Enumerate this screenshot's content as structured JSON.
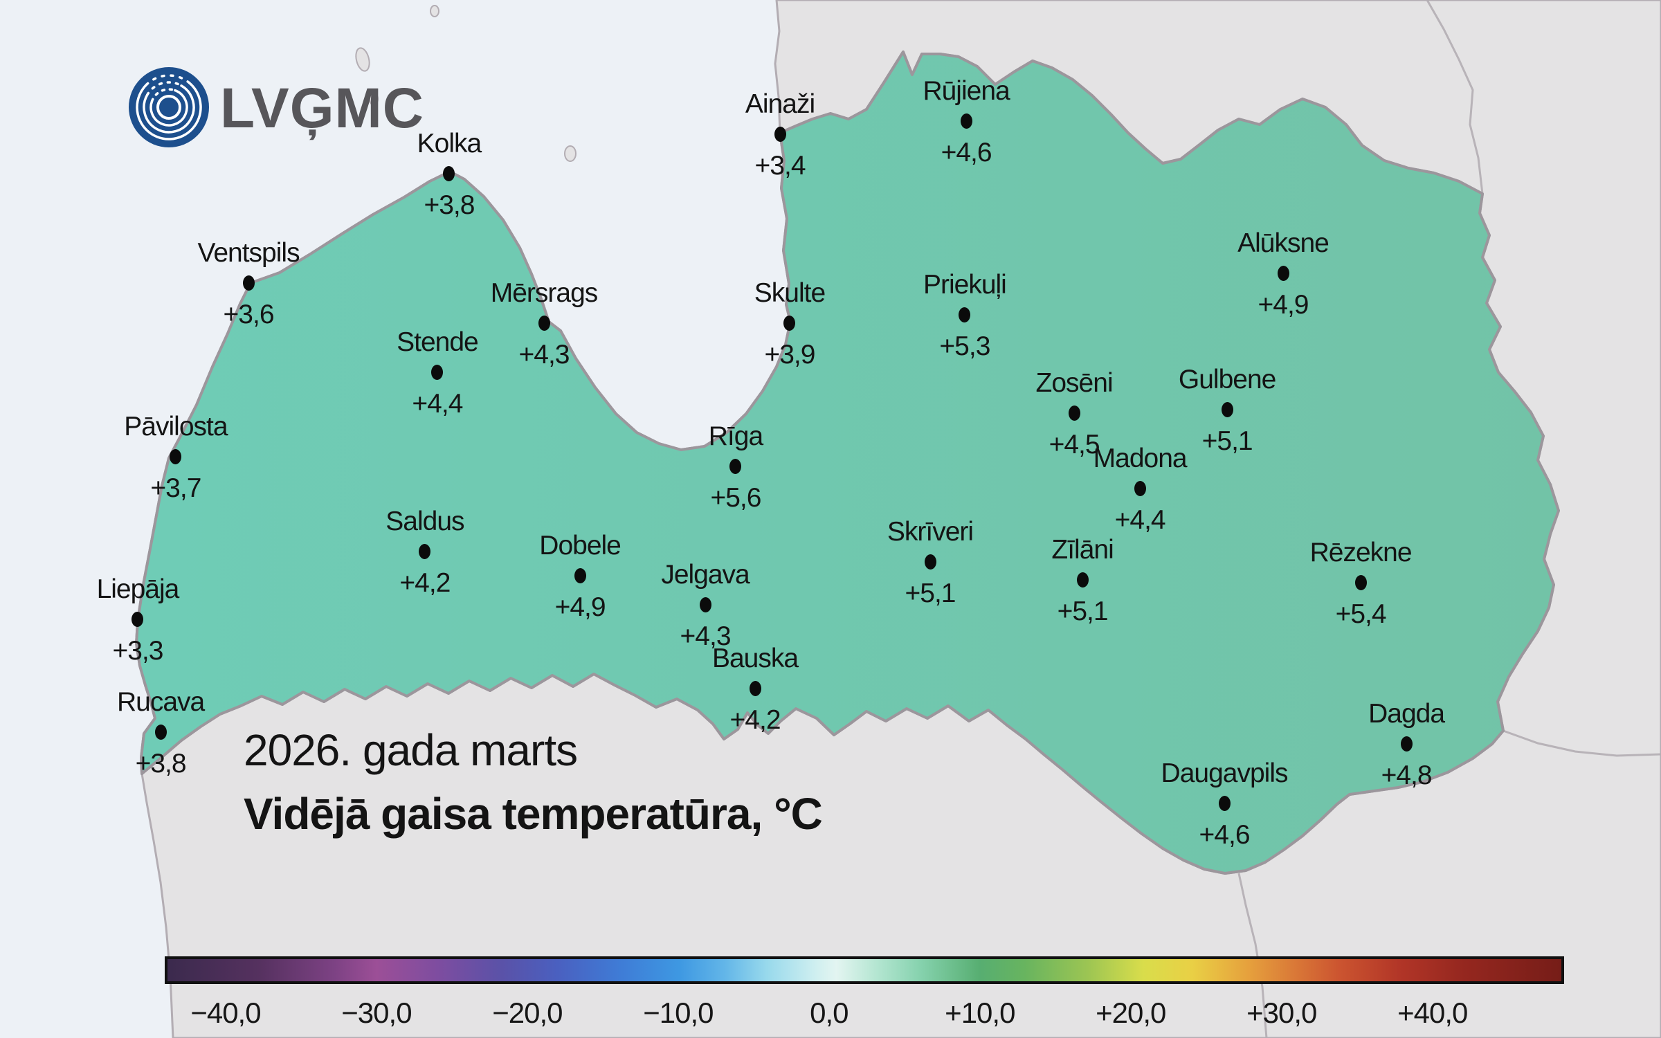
{
  "logo": {
    "text": "LVĢMC"
  },
  "title": {
    "line1": "2026. gada marts",
    "line2": "Vidējā gaisa temperatūra, °C"
  },
  "colors": {
    "sea": "#edf1f6",
    "foreign_land": "#e4e3e4",
    "foreign_border": "#b3adb3",
    "latvia_fill_west": "#6fccb6",
    "latvia_fill_east": "#72c3a7",
    "latvia_border": "#9c969c",
    "inner_border": "#b9aeb6",
    "station_dot": "#0b0b0b",
    "label_text": "#141414",
    "logo_blue": "#1d4f8d",
    "logo_text": "#57565a",
    "colorbar_border": "#111111"
  },
  "chart_data": {
    "type": "map",
    "title": "2026. gada marts",
    "subtitle": "Vidējā gaisa temperatūra, °C",
    "unit": "°C",
    "legend_position": "bottom",
    "stations": [
      {
        "name": "Kolka",
        "value": "+3,8",
        "value_c": 3.8,
        "x_pct": 27.04,
        "y_pct": 16.73
      },
      {
        "name": "Ainaži",
        "value": "+3,4",
        "value_c": 3.4,
        "x_pct": 46.96,
        "y_pct": 12.93
      },
      {
        "name": "Rūjiena",
        "value": "+4,6",
        "value_c": 4.6,
        "x_pct": 58.17,
        "y_pct": 11.67
      },
      {
        "name": "Ventspils",
        "value": "+3,6",
        "value_c": 3.6,
        "x_pct": 14.96,
        "y_pct": 27.27
      },
      {
        "name": "Mērsrags",
        "value": "+4,3",
        "value_c": 4.3,
        "x_pct": 32.75,
        "y_pct": 31.13
      },
      {
        "name": "Skulte",
        "value": "+3,9",
        "value_c": 3.9,
        "x_pct": 47.54,
        "y_pct": 31.13
      },
      {
        "name": "Priekuļi",
        "value": "+5,3",
        "value_c": 5.3,
        "x_pct": 58.08,
        "y_pct": 30.33
      },
      {
        "name": "Alūksne",
        "value": "+4,9",
        "value_c": 4.9,
        "x_pct": 77.25,
        "y_pct": 26.33
      },
      {
        "name": "Stende",
        "value": "+4,4",
        "value_c": 4.4,
        "x_pct": 26.33,
        "y_pct": 35.87
      },
      {
        "name": "Zosēni",
        "value": "+4,5",
        "value_c": 4.5,
        "x_pct": 64.67,
        "y_pct": 39.8
      },
      {
        "name": "Gulbene",
        "value": "+5,1",
        "value_c": 5.1,
        "x_pct": 73.88,
        "y_pct": 39.47
      },
      {
        "name": "Pāvilosta",
        "value": "+3,7",
        "value_c": 3.7,
        "x_pct": 10.58,
        "y_pct": 44.0
      },
      {
        "name": "Rīga",
        "value": "+5,6",
        "value_c": 5.6,
        "x_pct": 44.29,
        "y_pct": 44.93
      },
      {
        "name": "Madona",
        "value": "+4,4",
        "value_c": 4.4,
        "x_pct": 68.63,
        "y_pct": 47.07
      },
      {
        "name": "Saldus",
        "value": "+4,2",
        "value_c": 4.2,
        "x_pct": 25.58,
        "y_pct": 53.13
      },
      {
        "name": "Dobele",
        "value": "+4,9",
        "value_c": 4.9,
        "x_pct": 34.92,
        "y_pct": 55.47
      },
      {
        "name": "Jelgava",
        "value": "+4,3",
        "value_c": 4.3,
        "x_pct": 42.46,
        "y_pct": 58.27
      },
      {
        "name": "Skrīveri",
        "value": "+5,1",
        "value_c": 5.1,
        "x_pct": 56.0,
        "y_pct": 54.13
      },
      {
        "name": "Zīlāni",
        "value": "+5,1",
        "value_c": 5.1,
        "x_pct": 65.17,
        "y_pct": 55.87
      },
      {
        "name": "Rēzekne",
        "value": "+5,4",
        "value_c": 5.4,
        "x_pct": 81.92,
        "y_pct": 56.13
      },
      {
        "name": "Liepāja",
        "value": "+3,3",
        "value_c": 3.3,
        "x_pct": 8.29,
        "y_pct": 59.67
      },
      {
        "name": "Bauska",
        "value": "+4,2",
        "value_c": 4.2,
        "x_pct": 45.46,
        "y_pct": 66.33
      },
      {
        "name": "Rucava",
        "value": "+3,8",
        "value_c": 3.8,
        "x_pct": 9.67,
        "y_pct": 70.53
      },
      {
        "name": "Dagda",
        "value": "+4,8",
        "value_c": 4.8,
        "x_pct": 84.67,
        "y_pct": 71.67
      },
      {
        "name": "Daugavpils",
        "value": "+4,6",
        "value_c": 4.6,
        "x_pct": 73.71,
        "y_pct": 77.4
      }
    ],
    "colorbar": {
      "range_c": [
        -44,
        48
      ],
      "ticks": [
        "−40,0",
        "−30,0",
        "−20,0",
        "−10,0",
        "0,0",
        "+10,0",
        "+20,0",
        "+30,0",
        "+40,0"
      ],
      "tick_positions_pct": [
        4.35,
        15.13,
        25.91,
        36.69,
        47.47,
        58.25,
        69.03,
        79.81,
        90.59
      ],
      "gradient_stops": [
        [
          0,
          "#3b2a4d"
        ],
        [
          6.5,
          "#55315f"
        ],
        [
          12,
          "#7d4284"
        ],
        [
          15,
          "#9c4f97"
        ],
        [
          19.5,
          "#7d4da0"
        ],
        [
          24,
          "#5a52a8"
        ],
        [
          28,
          "#4a60c0"
        ],
        [
          32.5,
          "#3f7cd6"
        ],
        [
          36.7,
          "#3e98e2"
        ],
        [
          40,
          "#63b6e8"
        ],
        [
          43,
          "#98d9ec"
        ],
        [
          46.5,
          "#cfeff0"
        ],
        [
          48,
          "#e3f5f1"
        ],
        [
          51,
          "#b2e5d0"
        ],
        [
          54,
          "#86d2ae"
        ],
        [
          58.3,
          "#57ae71"
        ],
        [
          61.5,
          "#68b45f"
        ],
        [
          66,
          "#9cc553"
        ],
        [
          70,
          "#d9dd4b"
        ],
        [
          73.5,
          "#e9d045"
        ],
        [
          77.5,
          "#e6a13d"
        ],
        [
          81,
          "#d97737"
        ],
        [
          84,
          "#cc5530"
        ],
        [
          88.5,
          "#b13527"
        ],
        [
          93,
          "#95271f"
        ],
        [
          100,
          "#761d18"
        ]
      ]
    }
  }
}
